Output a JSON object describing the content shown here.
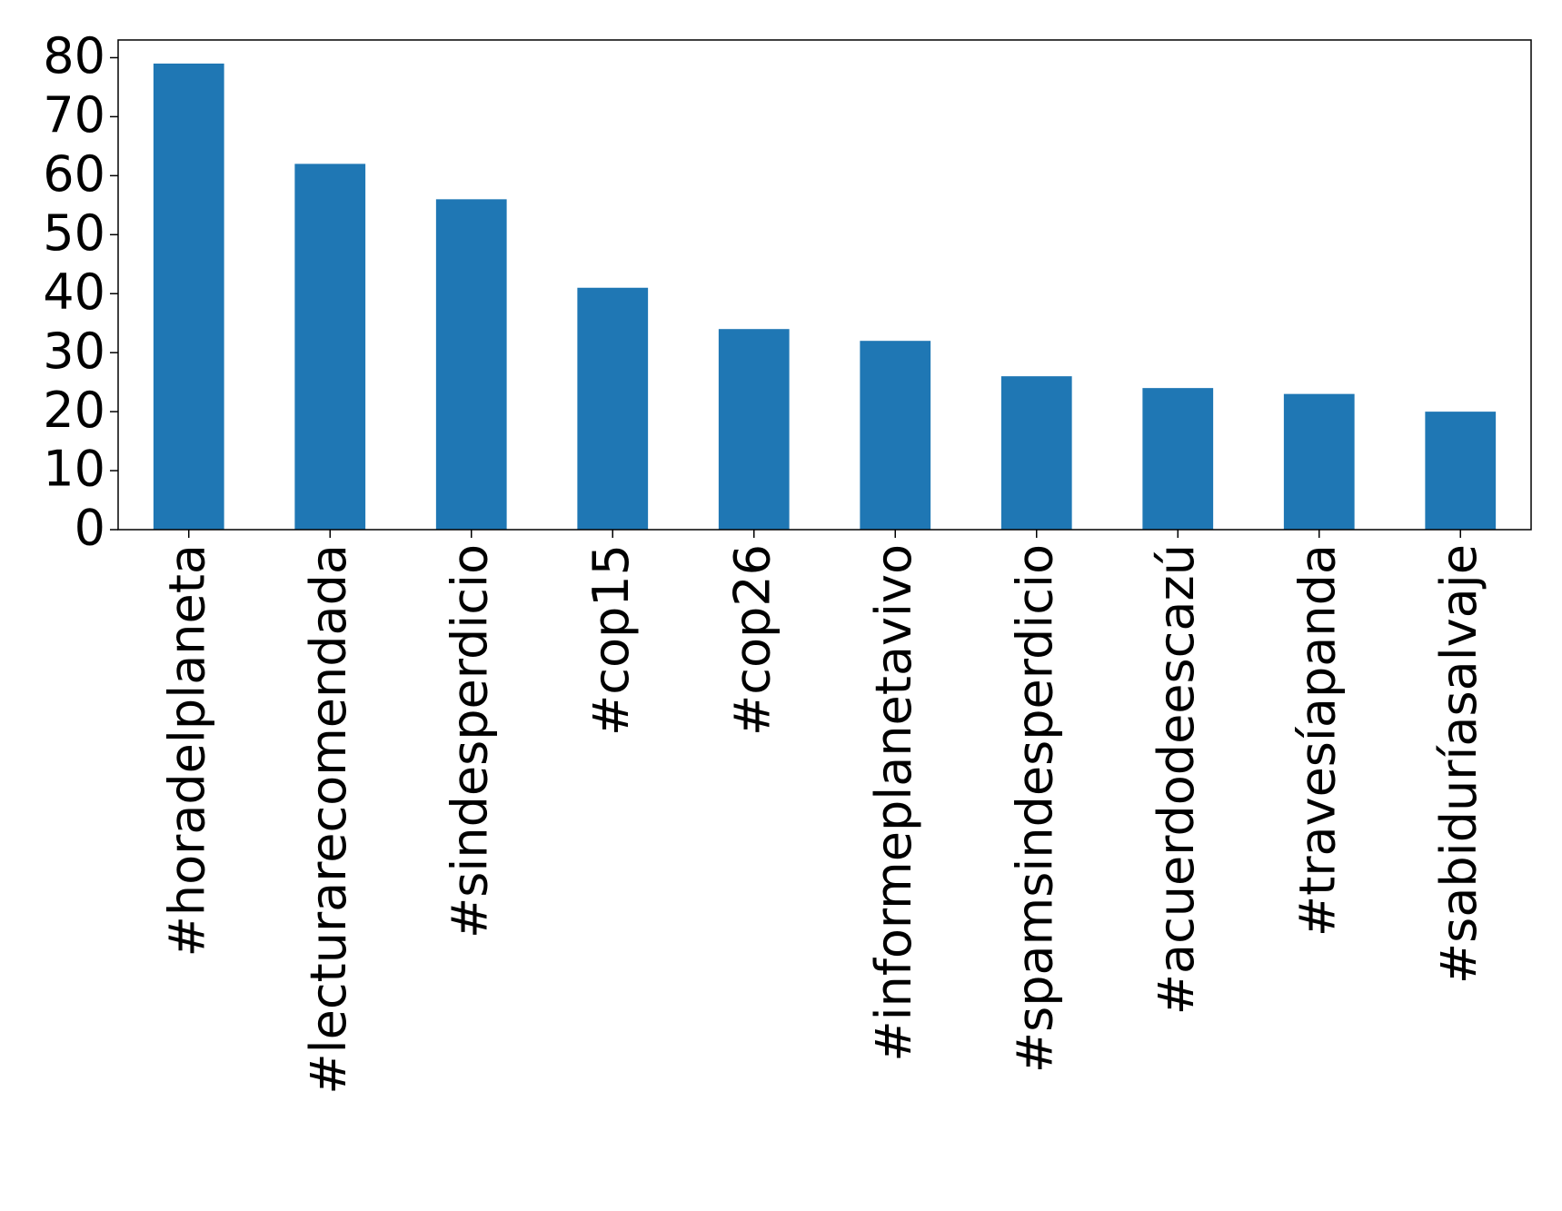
{
  "chart_data": {
    "type": "bar",
    "categories": [
      "#horadelplaneta",
      "#lecturarecomendada",
      "#sindesperdicio",
      "#cop15",
      "#cop26",
      "#informeplanetavivo",
      "#spamsindesperdicio",
      "#acuerdodeescazú",
      "#travesíapanda",
      "#sabiduríasalvaje"
    ],
    "values": [
      79,
      62,
      56,
      41,
      34,
      32,
      26,
      24,
      23,
      20
    ],
    "color": "#1f77b4",
    "ylim": [
      0,
      83
    ],
    "yticks": [
      0,
      10,
      20,
      30,
      40,
      50,
      60,
      70,
      80
    ],
    "grid": false
  }
}
